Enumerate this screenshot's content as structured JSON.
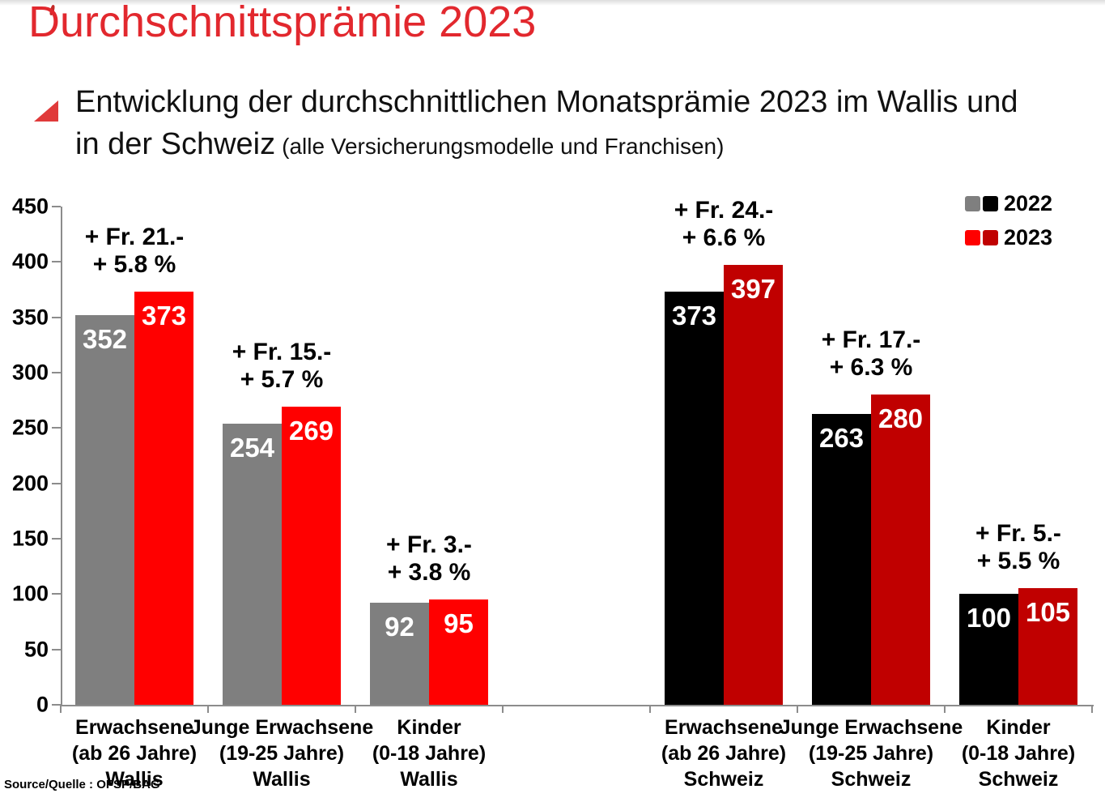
{
  "header": {
    "title": "Durchschnittsprämie 2023",
    "subtitle_line1": "Entwicklung der durchschnittlichen Monatsprämie 2023 im Wallis und",
    "subtitle_line2_main": "in der Schweiz",
    "subtitle_line2_small": "(alle Versicherungsmodelle und Franchisen)"
  },
  "source": "Source/Quelle : OFSP/BAG",
  "chart_data": {
    "type": "bar",
    "title": "Durchschnittsprämie 2023",
    "xlabel": "",
    "ylabel": "",
    "ylim": [
      0,
      450
    ],
    "yticks": [
      450,
      400,
      350,
      300,
      250,
      200,
      150,
      100,
      50,
      0
    ],
    "grid": false,
    "legend": {
      "position": "top-right",
      "entries": [
        {
          "label": "2022",
          "swatches": [
            "#7F7F7F",
            "#000000"
          ]
        },
        {
          "label": "2023",
          "swatches": [
            "#FF0000",
            "#C00000"
          ]
        }
      ]
    },
    "categories": [
      [
        "Erwachsene",
        "(ab 26 Jahre)",
        "Wallis"
      ],
      [
        "Junge Erwachsene",
        "(19-25 Jahre)",
        "Wallis"
      ],
      [
        "Kinder",
        "(0-18 Jahre)",
        "Wallis"
      ],
      [
        "Erwachsene",
        "(ab 26 Jahre)",
        "Schweiz"
      ],
      [
        "Junge Erwachsene",
        "(19-25 Jahre)",
        "Schweiz"
      ],
      [
        "Kinder",
        "(0-18 Jahre)",
        "Schweiz"
      ]
    ],
    "slots": [
      0,
      1,
      2,
      4,
      5,
      6
    ],
    "series": [
      {
        "name": "2022",
        "values": [
          352,
          254,
          92,
          373,
          263,
          100
        ],
        "colors": [
          "#7F7F7F",
          "#7F7F7F",
          "#7F7F7F",
          "#000000",
          "#000000",
          "#000000"
        ]
      },
      {
        "name": "2023",
        "values": [
          373,
          269,
          95,
          397,
          280,
          105
        ],
        "colors": [
          "#FF0000",
          "#FF0000",
          "#FF0000",
          "#C00000",
          "#C00000",
          "#C00000"
        ]
      }
    ],
    "annotations": [
      [
        "+ Fr. 21.-",
        "+ 5.8 %"
      ],
      [
        "+ Fr. 15.-",
        "+ 5.7 %"
      ],
      [
        "+ Fr. 3.-",
        "+ 3.8 %"
      ],
      [
        "+ Fr. 24.-",
        "+ 6.6 %"
      ],
      [
        "+ Fr. 17.-",
        "+ 6.3 %"
      ],
      [
        "+ Fr. 5.-",
        "+ 5.5 %"
      ]
    ]
  }
}
